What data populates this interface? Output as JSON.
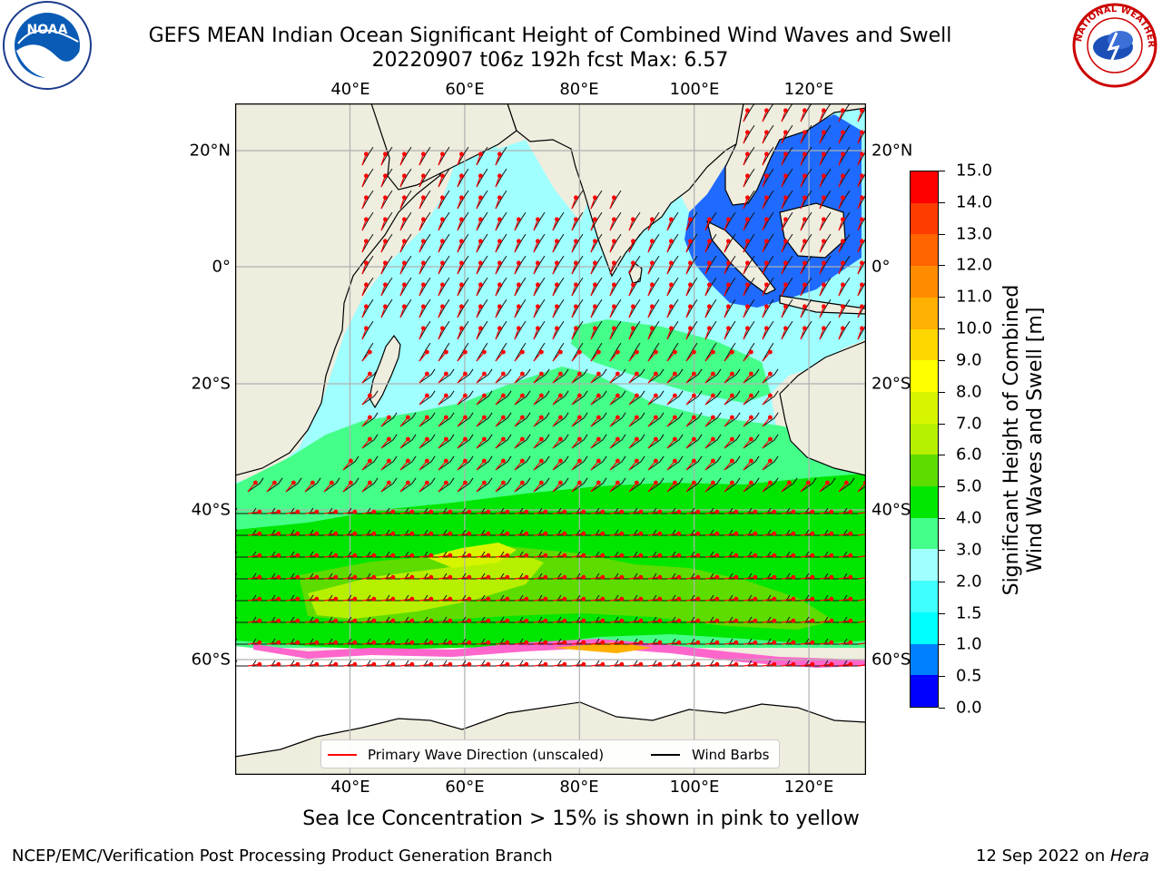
{
  "header": {
    "title_line1": "GEFS MEAN Indian Ocean Significant Height of Combined Wind Waves and Swell",
    "title_line2": "20220907 t06z 192h fcst   Max: 6.57"
  },
  "logos": {
    "noaa": {
      "icon": "noaa-logo",
      "text": "NOAA"
    },
    "nws": {
      "icon": "nws-logo",
      "text": "NATIONAL WEATHER SERVICE"
    }
  },
  "map": {
    "lon_range": [
      20,
      130
    ],
    "lat_range": [
      -73,
      27
    ],
    "lon_ticks": [
      "40°E",
      "60°E",
      "80°E",
      "100°E",
      "120°E"
    ],
    "lat_ticks": [
      "20°N",
      "0°",
      "20°S",
      "40°S",
      "60°S"
    ],
    "land_color": "#efedde",
    "grid": true
  },
  "colorbar": {
    "label_line1": "Significant Height of Combined",
    "label_line2": "Wind Waves and Swell [m]",
    "ticks": [
      "0.0",
      "0.5",
      "1.0",
      "1.5",
      "2.0",
      "3.0",
      "4.0",
      "5.0",
      "6.0",
      "7.0",
      "8.0",
      "9.0",
      "10.0",
      "11.0",
      "12.0",
      "13.0",
      "14.0",
      "15.0"
    ],
    "colors": [
      "#0000ff",
      "#0080ff",
      "#00ffff",
      "#40ffff",
      "#a0ffff",
      "#44ff88",
      "#00e600",
      "#5ddc00",
      "#b6f000",
      "#d8f500",
      "#ffff00",
      "#ffd700",
      "#ffb000",
      "#ff8c00",
      "#ff6400",
      "#ff3c00",
      "#ff0000"
    ]
  },
  "legend": {
    "items": [
      {
        "label": "Primary Wave Direction (unscaled)",
        "color": "#ff0000"
      },
      {
        "label": "Wind Barbs",
        "color": "#000000"
      }
    ]
  },
  "note": "Sea Ice Concentration > 15% is shown in pink to yellow",
  "footer": {
    "left": "NCEP/EMC/Verification Post Processing Product Generation Branch",
    "date": "12 Sep 2022 on ",
    "host": "Hera"
  }
}
